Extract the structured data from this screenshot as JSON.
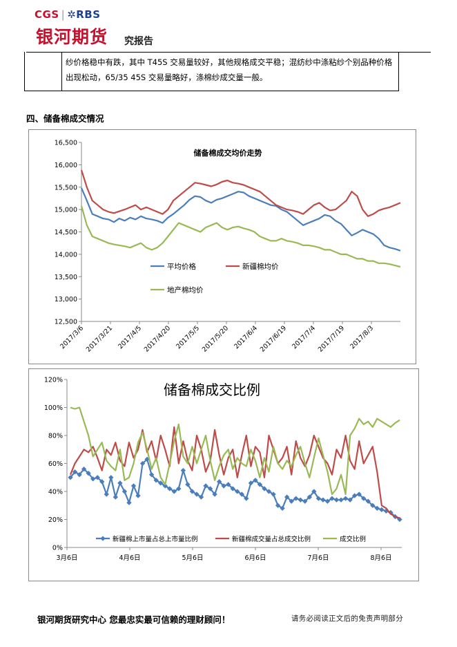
{
  "header": {
    "brand_en": "CGS",
    "brand_sep": "|",
    "brand_partner": "✲RBS",
    "brand_cn": "银河期货",
    "report_type": "究报告"
  },
  "intro_text": "纱价格稳中有跌，其中 T45S 交易量较好，其他规格成交平稳；混纺纱中涤粘纱个别品种价格出现松动，65/35 45S 交易量略好，涤棉纱成交量一般。",
  "section_title": "四、储备棉成交情况",
  "chart_data": [
    {
      "type": "line",
      "title": "储备棉成交均价走势",
      "x_labels": [
        "2017/3/6",
        "2017/3/21",
        "2017/4/5",
        "2017/4/20",
        "2017/5/5",
        "2017/5/20",
        "2017/6/4",
        "2017/6/19",
        "2017/7/4",
        "2017/7/19",
        "2017/8/3"
      ],
      "y_ticks": [
        "16,500",
        "16,000",
        "15,500",
        "15,000",
        "14,500",
        "14,000",
        "13,500",
        "13,000",
        "12,500"
      ],
      "ylim": [
        12500,
        16500
      ],
      "series": [
        {
          "name": "平均价格",
          "color": "#4a7ebb",
          "values": [
            15480,
            15200,
            14900,
            14850,
            14800,
            14780,
            14720,
            14800,
            14750,
            14820,
            14780,
            14850,
            14800,
            14780,
            14750,
            14700,
            14820,
            14900,
            15000,
            15100,
            15220,
            15300,
            15280,
            15200,
            15150,
            15220,
            15250,
            15300,
            15350,
            15400,
            15380,
            15300,
            15250,
            15200,
            15150,
            15100,
            15080,
            15000,
            14950,
            14850,
            14750,
            14650,
            14700,
            14750,
            14800,
            14880,
            14850,
            14750,
            14680,
            14550,
            14420,
            14480,
            14550,
            14500,
            14450,
            14350,
            14200,
            14150,
            14120,
            14080
          ]
        },
        {
          "name": "新疆棉均价",
          "color": "#be4b48",
          "values": [
            15880,
            15500,
            15200,
            15100,
            15000,
            14950,
            14920,
            14960,
            15000,
            15050,
            15100,
            15000,
            15050,
            15000,
            14950,
            14900,
            15000,
            15200,
            15300,
            15400,
            15500,
            15600,
            15580,
            15550,
            15520,
            15560,
            15620,
            15650,
            15600,
            15580,
            15550,
            15500,
            15450,
            15400,
            15300,
            15200,
            15100,
            15050,
            15000,
            14980,
            14950,
            14900,
            15000,
            15100,
            15150,
            15050,
            14980,
            15000,
            15100,
            15200,
            15400,
            15300,
            15000,
            14850,
            14900,
            14980,
            15020,
            15050,
            15100,
            15150
          ]
        },
        {
          "name": "地产棉均价",
          "color": "#98b954",
          "values": [
            15080,
            14650,
            14400,
            14350,
            14300,
            14250,
            14220,
            14200,
            14180,
            14150,
            14200,
            14250,
            14150,
            14100,
            14150,
            14250,
            14400,
            14550,
            14700,
            14650,
            14600,
            14550,
            14500,
            14600,
            14650,
            14700,
            14600,
            14550,
            14600,
            14620,
            14580,
            14550,
            14500,
            14400,
            14350,
            14300,
            14300,
            14350,
            14300,
            14280,
            14250,
            14200,
            14200,
            14180,
            14150,
            14100,
            14100,
            14050,
            14000,
            14000,
            13950,
            13900,
            13900,
            13850,
            13850,
            13800,
            13800,
            13780,
            13750,
            13720
          ]
        }
      ]
    },
    {
      "type": "line",
      "title": "储备棉成交比例",
      "x_labels": [
        "3月6日",
        "4月6日",
        "5月6日",
        "6月6日",
        "7月6日",
        "8月6日"
      ],
      "y_ticks": [
        "120%",
        "100%",
        "80%",
        "60%",
        "40%",
        "20%",
        "0%"
      ],
      "ylim": [
        0,
        120
      ],
      "series": [
        {
          "name": "新疆棉上市量占总上市量比例",
          "color": "#4a7ebb",
          "values": [
            50,
            54,
            52,
            56,
            53,
            49,
            50,
            47,
            38,
            50,
            36,
            46,
            40,
            32,
            44,
            37,
            60,
            63,
            52,
            48,
            46,
            44,
            42,
            40,
            42,
            55,
            45,
            40,
            38,
            36,
            44,
            42,
            38,
            47,
            44,
            45,
            42,
            40,
            38,
            35,
            46,
            48,
            45,
            42,
            40,
            38,
            30,
            28,
            36,
            33,
            35,
            34,
            33,
            36,
            40,
            35,
            34,
            33,
            35,
            34,
            34,
            35,
            34,
            37,
            38,
            35,
            33,
            30,
            28,
            27,
            26,
            25,
            22,
            20
          ]
        },
        {
          "name": "新疆棉成交量占总成交比例",
          "color": "#be4b48",
          "values": [
            52,
            60,
            65,
            70,
            68,
            72,
            64,
            55,
            70,
            66,
            75,
            62,
            58,
            75,
            64,
            70,
            84,
            68,
            76,
            62,
            80,
            70,
            58,
            86,
            60,
            76,
            62,
            55,
            80,
            70,
            54,
            62,
            84,
            66,
            52,
            64,
            70,
            50,
            66,
            80,
            58,
            72,
            68,
            50,
            80,
            70,
            60,
            64,
            72,
            52,
            76,
            64,
            58,
            66,
            80,
            72,
            64,
            60,
            52,
            70,
            64,
            80,
            62,
            56,
            76,
            60,
            66,
            72,
            54,
            30,
            28,
            24,
            22,
            21
          ]
        },
        {
          "name": "成交比例",
          "color": "#98b954",
          "values": [
            100,
            99,
            100,
            90,
            80,
            65,
            70,
            75,
            62,
            58,
            55,
            70,
            48,
            50,
            60,
            75,
            82,
            70,
            56,
            64,
            50,
            45,
            60,
            76,
            88,
            65,
            60,
            72,
            60,
            70,
            80,
            62,
            48,
            58,
            66,
            70,
            56,
            64,
            60,
            58,
            70,
            62,
            50,
            64,
            54,
            72,
            60,
            56,
            62,
            58,
            66,
            72,
            60,
            50,
            64,
            78,
            66,
            54,
            38,
            42,
            52,
            38,
            80,
            85,
            92,
            88,
            90,
            86,
            92,
            90,
            88,
            86,
            89,
            91
          ]
        }
      ]
    }
  ],
  "footer": {
    "left": "银河期货研究中心   您最忠实最可信赖的理财顾问！",
    "right": "请务必阅读正文后的免责声明部分"
  }
}
